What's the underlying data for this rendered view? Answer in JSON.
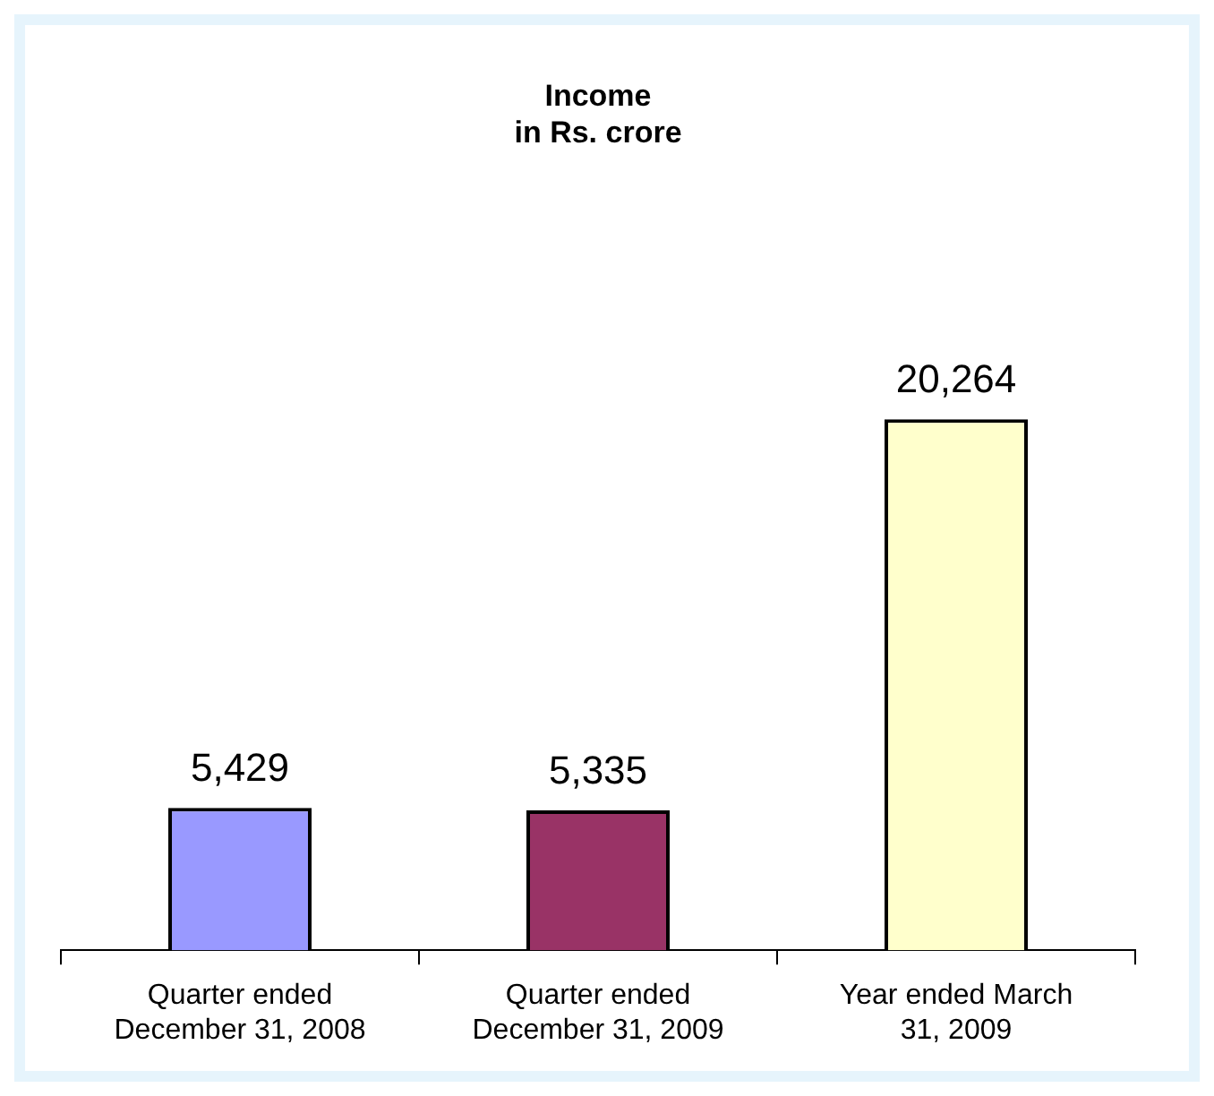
{
  "chart_data": {
    "type": "bar",
    "title": "Income\nin Rs. crore",
    "categories": [
      "Quarter ended December 31, 2008",
      "Quarter ended December 31, 2009",
      "Year ended March 31, 2009"
    ],
    "values": [
      5429,
      5335,
      20264
    ],
    "value_labels": [
      "5,429",
      "5,335",
      "20,264"
    ],
    "colors": [
      "#9999ff",
      "#993366",
      "#ffffcc"
    ]
  }
}
